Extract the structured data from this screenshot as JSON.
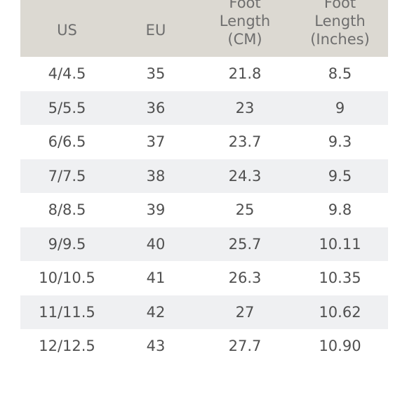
{
  "table": {
    "headers": {
      "us": "US",
      "eu": "EU",
      "cm": [
        "Foot",
        "Length",
        "(CM)"
      ],
      "inches": [
        "Foot",
        "Length",
        "(Inches)"
      ]
    },
    "rows": [
      {
        "us": "4/4.5",
        "eu": "35",
        "cm": "21.8",
        "inches": "8.5"
      },
      {
        "us": "5/5.5",
        "eu": "36",
        "cm": "23",
        "inches": "9"
      },
      {
        "us": "6/6.5",
        "eu": "37",
        "cm": "23.7",
        "inches": "9.3"
      },
      {
        "us": "7/7.5",
        "eu": "38",
        "cm": "24.3",
        "inches": "9.5"
      },
      {
        "us": "8/8.5",
        "eu": "39",
        "cm": "25",
        "inches": "9.8"
      },
      {
        "us": "9/9.5",
        "eu": "40",
        "cm": "25.7",
        "inches": "10.11"
      },
      {
        "us": "10/10.5",
        "eu": "41",
        "cm": "26.3",
        "inches": "10.35"
      },
      {
        "us": "11/11.5",
        "eu": "42",
        "cm": "27",
        "inches": "10.62"
      },
      {
        "us": "12/12.5",
        "eu": "43",
        "cm": "27.7",
        "inches": "10.90"
      }
    ],
    "colors": {
      "header_bg": "#dcd9d2",
      "alt_row_bg": "#eff0f2",
      "text": "#505050"
    }
  }
}
